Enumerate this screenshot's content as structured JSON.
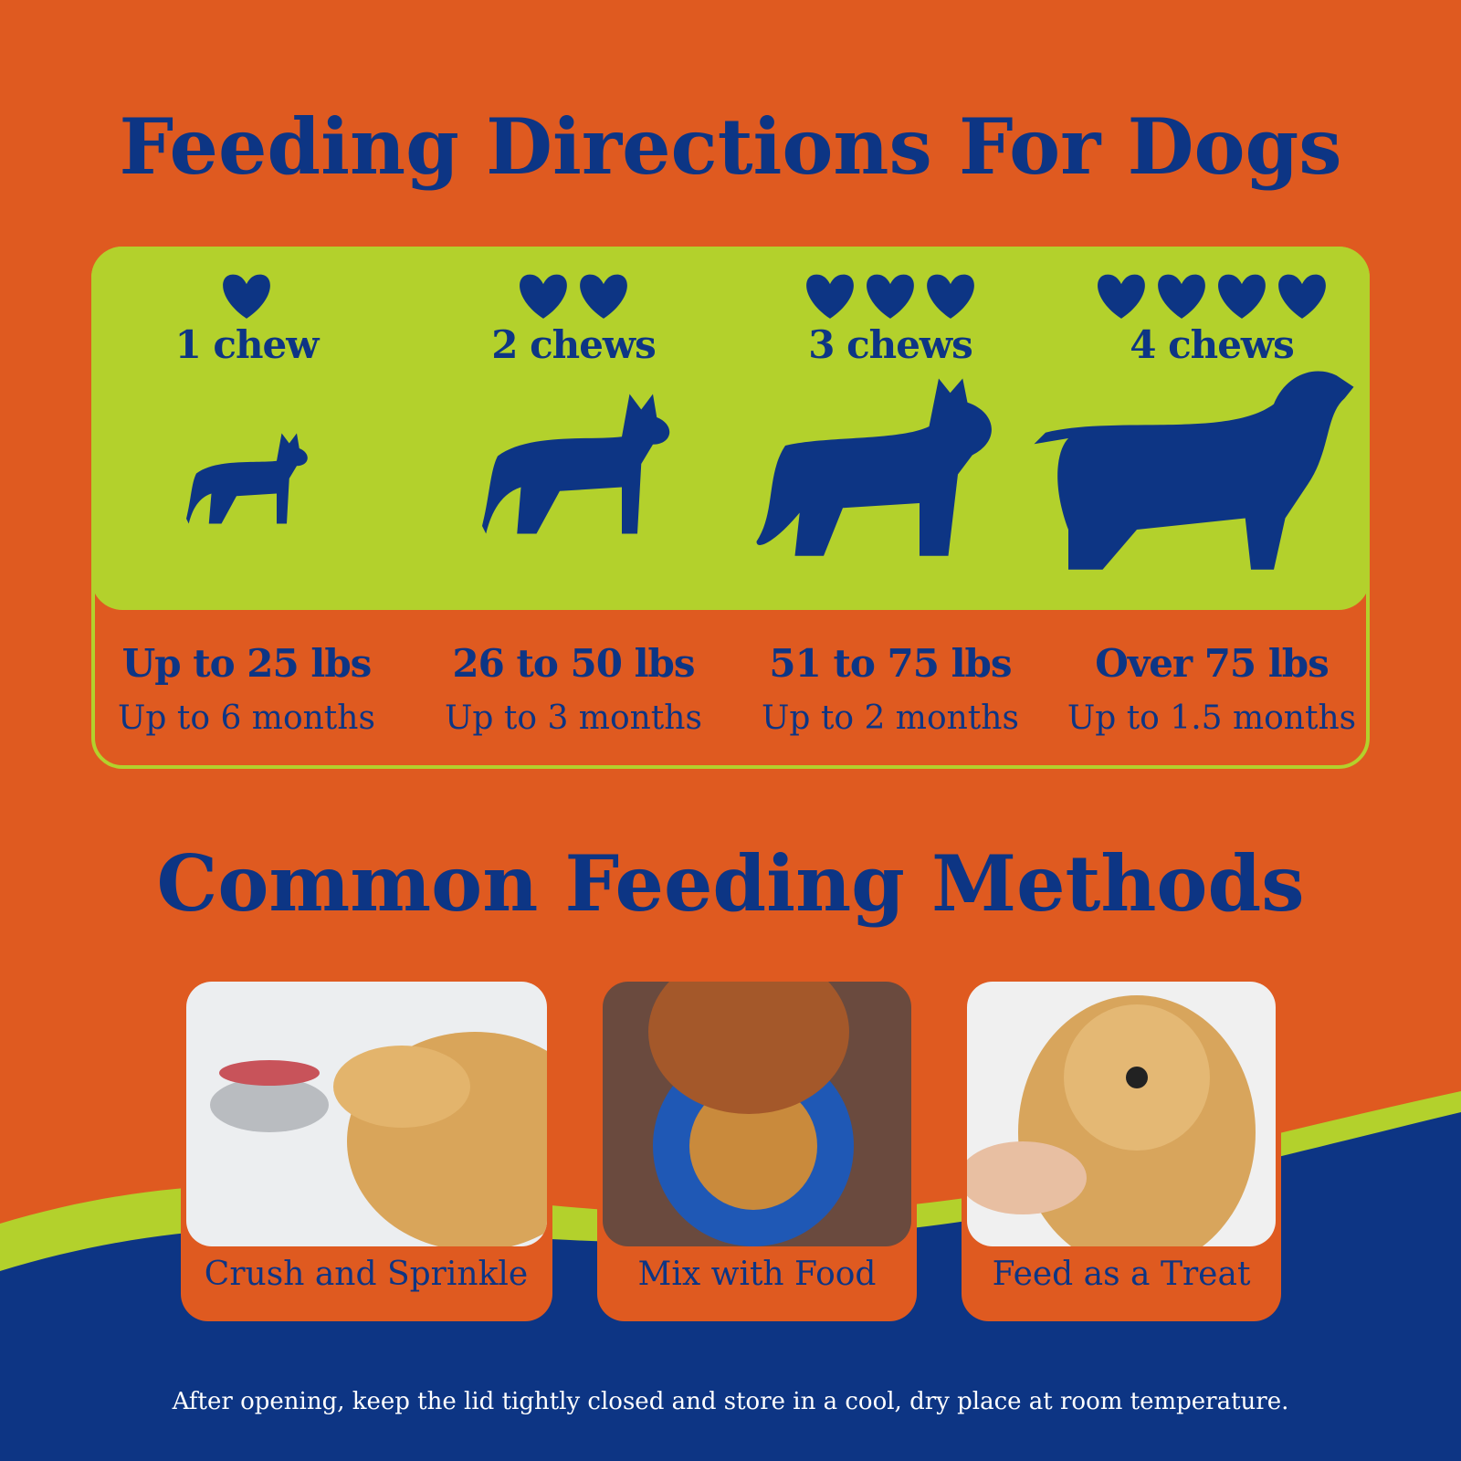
{
  "title": "Feeding Directions For Dogs",
  "tiers": [
    {
      "hearts": 1,
      "chews": "1 chew",
      "weight": "Up to 25 lbs",
      "duration": "Up to 6 months"
    },
    {
      "hearts": 2,
      "chews": "2 chews",
      "weight": "26 to 50 lbs",
      "duration": "Up to 3 months"
    },
    {
      "hearts": 3,
      "chews": "3 chews",
      "weight": "51 to 75 lbs",
      "duration": "Up to 2 months"
    },
    {
      "hearts": 4,
      "chews": "4 chews",
      "weight": "Over 75 lbs",
      "duration": "Up to 1.5 months"
    }
  ],
  "methods_title": "Common Feeding Methods",
  "methods": [
    "Crush and Sprinkle",
    "Mix with Food",
    "Feed as a Treat"
  ],
  "footer": "After opening, keep the lid tightly closed and store in a cool, dry place at room temperature."
}
